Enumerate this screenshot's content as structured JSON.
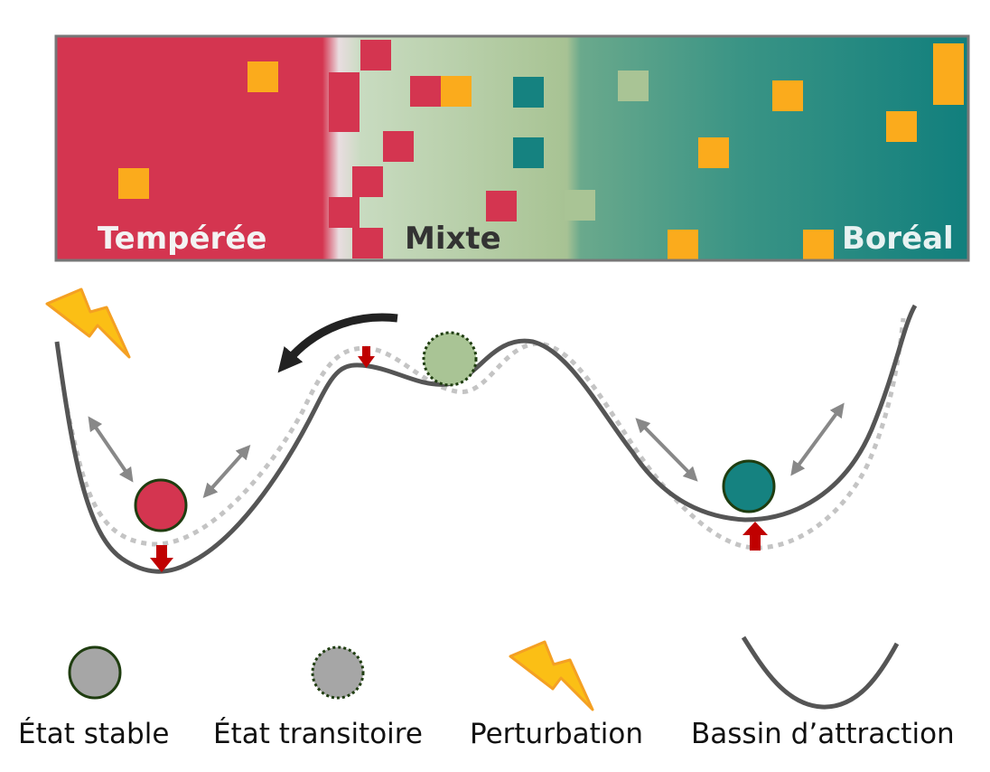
{
  "zones": {
    "temperate": "Tempérée",
    "mixed": "Mixte",
    "boreal": "Boréal"
  },
  "legend": {
    "stable": "État stable",
    "transient": "État transitoire",
    "perturbation": "Perturbation",
    "basin": "Bassin d’attraction"
  },
  "colors": {
    "temperate": "#d43550",
    "mixed": "#a9c495",
    "boreal": "#158280",
    "patch_orange": "#fbab1c",
    "stable_circle": "#a6a6a6",
    "basin_line": "#555555",
    "dotted_line": "#c4c4c4",
    "red_arrow": "#c00000"
  }
}
